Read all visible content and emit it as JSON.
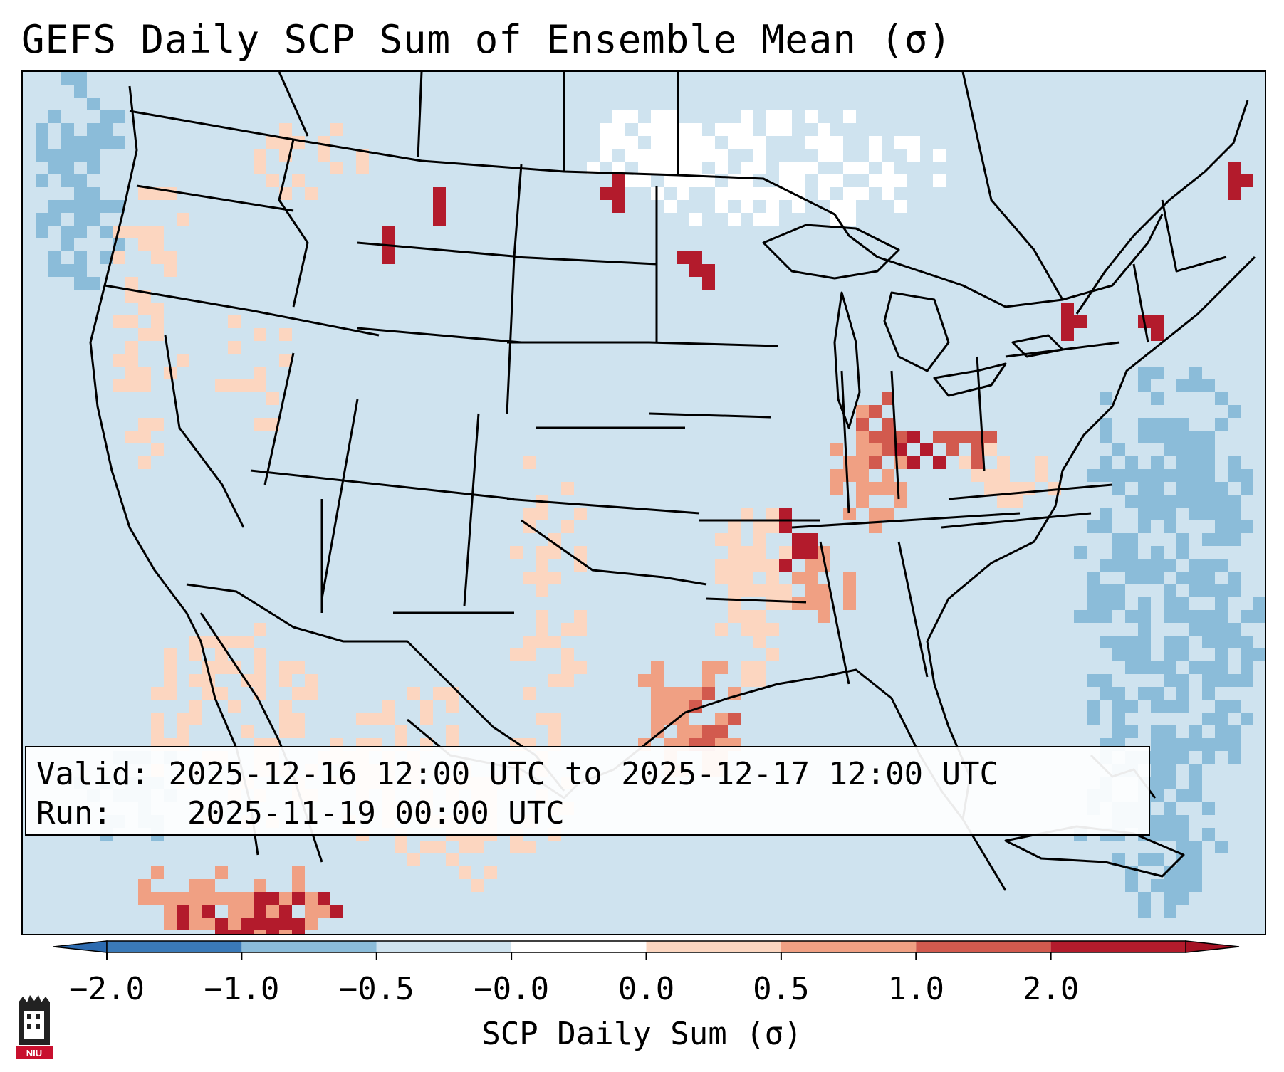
{
  "title": "GEFS Daily SCP Sum of Ensemble Mean (σ)",
  "info": {
    "valid_label": "Valid:",
    "valid_value": "2025-12-16 12:00 UTC to 2025-12-17 12:00 UTC",
    "run_label": "Run:",
    "run_value": "2025-11-19 00:00 UTC"
  },
  "colorbar": {
    "label": "SCP Daily Sum (σ)",
    "ticks": [
      "−2.0",
      "−1.0",
      "−0.5",
      "−0.0",
      "0.0",
      "0.5",
      "1.0",
      "2.0"
    ],
    "bin_colors": [
      "#3a7ab8",
      "#8bbcd9",
      "#cfe3ef",
      "#ffffff",
      "#fcd6c0",
      "#f0a083",
      "#d25a4e",
      "#b31b2c"
    ],
    "extend_low_color": "#2c6bb0",
    "extend_high_color": "#a51224"
  },
  "map": {
    "projection": "Lambert Conformal (CONUS)",
    "background_color": "#cfe3ef",
    "features": [
      "state-borders",
      "coastlines",
      "country-borders",
      "great-lakes"
    ]
  },
  "logo": {
    "icon": "niu-logo-icon",
    "text": "NIU"
  }
}
